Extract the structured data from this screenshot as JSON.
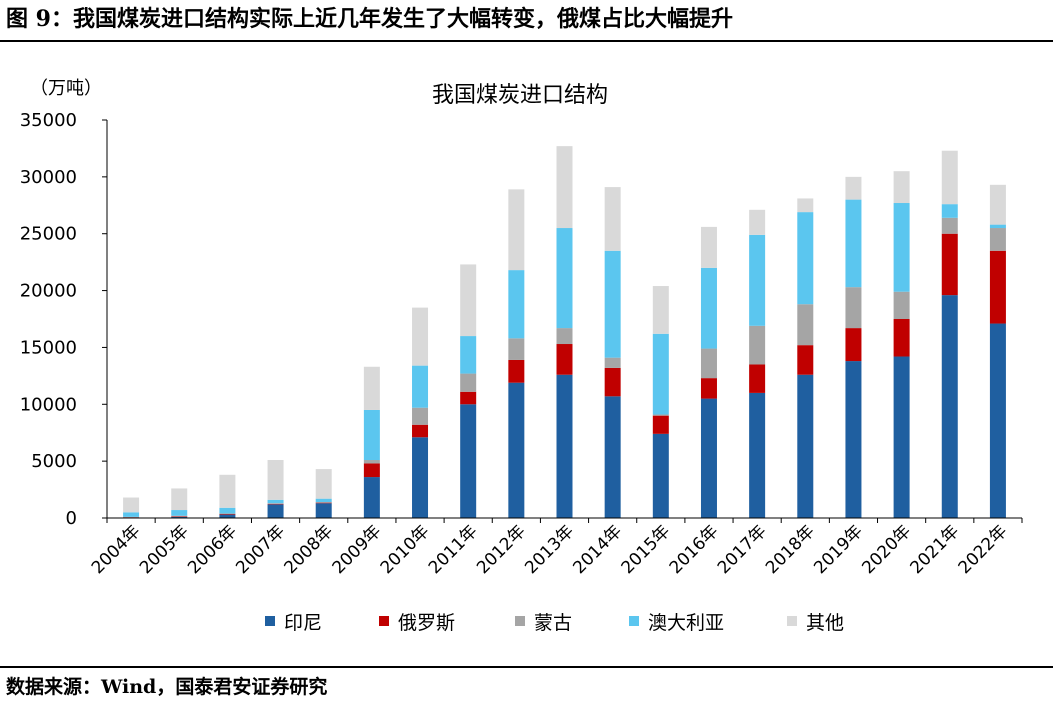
{
  "figure": {
    "title": "图 9：我国煤炭进口结构实际上近几年发生了大幅转变，俄煤占比大幅提升",
    "source": "数据来源：Wind，国泰君安证券研究"
  },
  "chart_data": {
    "type": "bar",
    "stacked": true,
    "title": "我国煤炭进口结构",
    "unit_label": "（万吨）",
    "ylim": [
      0,
      35000
    ],
    "yticks": [
      0,
      5000,
      10000,
      15000,
      20000,
      25000,
      30000,
      35000
    ],
    "grid": false,
    "legend_position": "bottom",
    "categories": [
      "2004年",
      "2005年",
      "2006年",
      "2007年",
      "2008年",
      "2009年",
      "2010年",
      "2011年",
      "2012年",
      "2013年",
      "2014年",
      "2015年",
      "2016年",
      "2017年",
      "2018年",
      "2019年",
      "2020年",
      "2021年",
      "2022年"
    ],
    "series": [
      {
        "name": "印尼",
        "color": "#1f5fa0",
        "values": [
          50,
          100,
          300,
          1200,
          1300,
          3600,
          7100,
          10000,
          11900,
          12600,
          10700,
          7400,
          10500,
          11000,
          12600,
          13800,
          14200,
          19600,
          17100
        ]
      },
      {
        "name": "俄罗斯",
        "color": "#c00000",
        "values": [
          20,
          50,
          50,
          50,
          50,
          1200,
          1100,
          1100,
          2000,
          2700,
          2500,
          1600,
          1800,
          2500,
          2600,
          2900,
          3300,
          5400,
          6400
        ]
      },
      {
        "name": "蒙古",
        "color": "#a5a5a5",
        "values": [
          30,
          50,
          50,
          50,
          50,
          300,
          1500,
          1600,
          1900,
          1400,
          900,
          100,
          2600,
          3400,
          3600,
          3600,
          2400,
          1400,
          2000
        ]
      },
      {
        "name": "澳大利亚",
        "color": "#5bc6ef",
        "values": [
          400,
          500,
          500,
          300,
          300,
          4400,
          3700,
          3300,
          6000,
          8800,
          9400,
          7100,
          7100,
          8000,
          8100,
          7700,
          7800,
          1200,
          300
        ]
      },
      {
        "name": "其他",
        "color": "#d9d9d9",
        "values": [
          1300,
          1900,
          2900,
          3500,
          2600,
          3800,
          5100,
          6300,
          7100,
          7200,
          5600,
          4200,
          3600,
          2200,
          1200,
          2000,
          2800,
          4700,
          3500
        ]
      }
    ]
  }
}
